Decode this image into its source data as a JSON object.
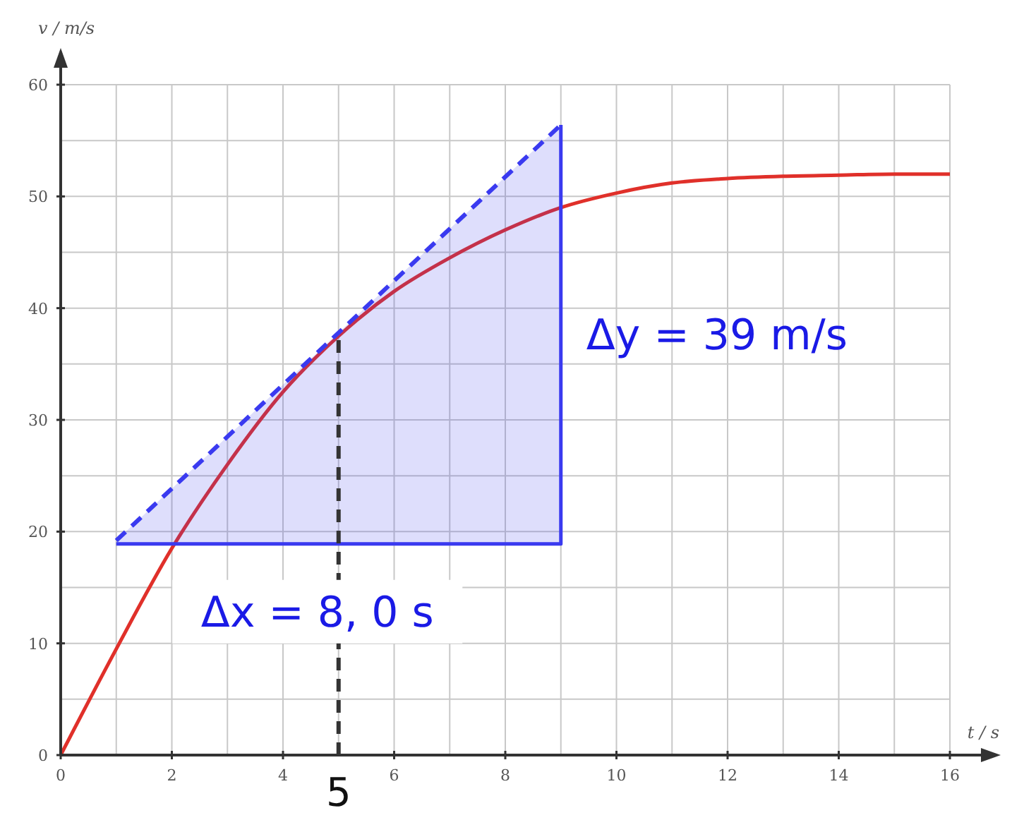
{
  "chart_data": {
    "type": "line",
    "xlabel": "t / s",
    "ylabel": "v / m/s",
    "xlim": [
      0,
      16
    ],
    "ylim": [
      0,
      60
    ],
    "xticks": [
      0,
      {
        "value": 1,
        "label": null
      },
      2,
      {
        "value": 3,
        "label": null
      },
      4,
      {
        "value": 5,
        "label": null
      },
      6,
      {
        "value": 7,
        "label": null
      },
      8,
      {
        "value": 9,
        "label": null
      },
      10,
      {
        "value": 11,
        "label": null
      },
      12,
      {
        "value": 13,
        "label": null
      },
      14,
      {
        "value": 15,
        "label": null
      },
      16
    ],
    "yticks": [
      0,
      {
        "value": 5,
        "label": null
      },
      10,
      {
        "value": 15,
        "label": null
      },
      20,
      {
        "value": 25,
        "label": null
      },
      30,
      {
        "value": 35,
        "label": null
      },
      40,
      {
        "value": 45,
        "label": null
      },
      50,
      {
        "value": 55,
        "label": null
      },
      60
    ],
    "grid": true,
    "marker": "none",
    "series": [
      {
        "color": "#e0302a",
        "x": [
          0,
          1,
          2,
          3,
          4,
          5,
          6,
          7,
          8,
          9,
          10,
          11,
          12,
          13,
          14,
          15,
          16
        ],
        "values": [
          0,
          9.5,
          18.5,
          26,
          32.5,
          37.5,
          41.5,
          44.5,
          47,
          49,
          50.3,
          51.2,
          51.6,
          51.8,
          51.9,
          52,
          52
        ],
        "line_style": "solid"
      },
      {
        "color": "#3a3af0",
        "x": [
          1,
          9
        ],
        "values": [
          19.2,
          56.4
        ],
        "lower": [
          18.9,
          18.9
        ],
        "upper": [
          19.2,
          56.4
        ],
        "line_style": "dashed"
      },
      {
        "color": "#3a3af0",
        "x": [
          1,
          9,
          9
        ],
        "values": [
          18.9,
          18.9,
          56.4
        ],
        "line_style": "solid"
      },
      {
        "color": "#333333",
        "x": [
          5,
          5
        ],
        "values": [
          0,
          37.5
        ],
        "line_style": "dashed"
      }
    ],
    "annotations": [
      "Δx = 8, 0 s",
      "Δy = 39 m/s",
      "5"
    ]
  }
}
